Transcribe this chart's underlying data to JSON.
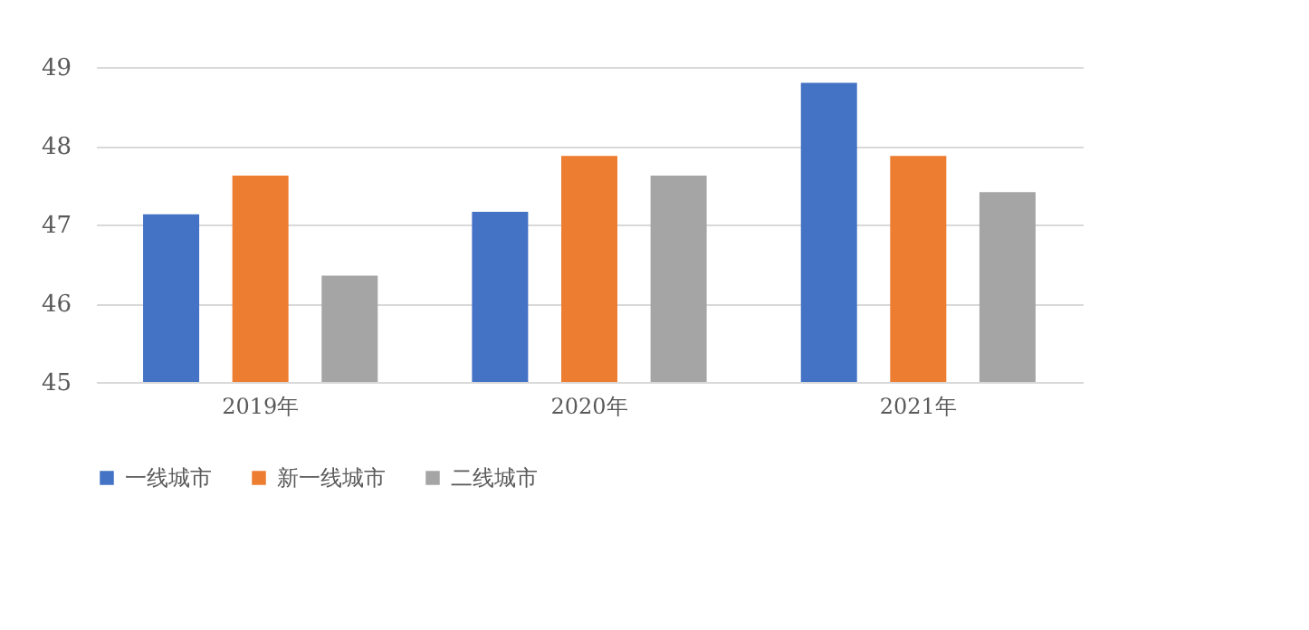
{
  "chart_data": {
    "type": "bar",
    "categories": [
      "2019年",
      "2020年",
      "2021年"
    ],
    "series": [
      {
        "name": "一线城市",
        "color": "#4472c4",
        "values": [
          47.13,
          47.16,
          48.8
        ]
      },
      {
        "name": "新一线城市",
        "color": "#ed7d31",
        "values": [
          47.62,
          47.87,
          47.87
        ]
      },
      {
        "name": "二线城市",
        "color": "#a5a5a5",
        "values": [
          46.35,
          47.62,
          47.41
        ]
      }
    ],
    "ylim": [
      45,
      49
    ],
    "yticks": [
      45,
      46,
      47,
      48,
      49
    ],
    "grid": "y",
    "legend": "bottom"
  }
}
